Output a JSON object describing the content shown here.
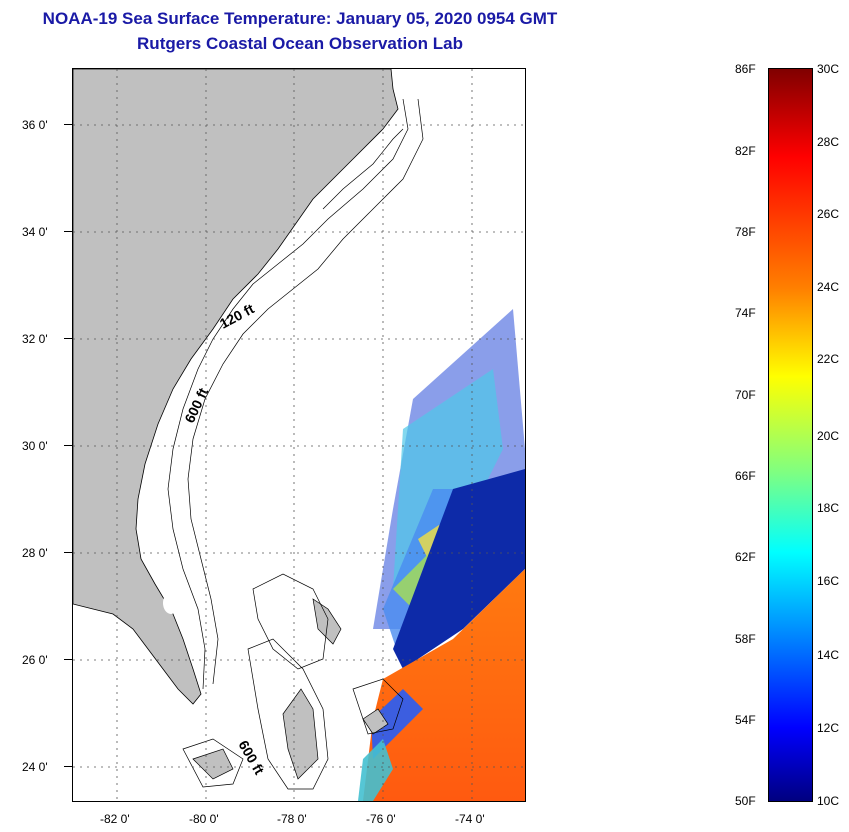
{
  "title": {
    "line1": "NOAA-19 Sea Surface Temperature:  January 05, 2020 0954 GMT",
    "line2": "Rutgers Coastal Ocean Observation Lab"
  },
  "map": {
    "lon_range": [
      -83.0,
      -72.8
    ],
    "lat_range": [
      23.0,
      37.2
    ],
    "lon_ticks": [
      "-82 0'",
      "-80 0'",
      "-78 0'",
      "-76 0'",
      "-74 0'"
    ],
    "lat_ticks": [
      "36 0'",
      "34 0'",
      "32 0'",
      "30 0'",
      "28 0'",
      "26 0'",
      "24 0'"
    ],
    "grid": "dotted",
    "land_color": "#c0c0c0",
    "contour_labels": [
      "120 ft",
      "600 ft",
      "600 ft"
    ]
  },
  "colorbar": {
    "f_labels": [
      "86F",
      "82F",
      "78F",
      "74F",
      "70F",
      "66F",
      "62F",
      "58F",
      "54F",
      "50F"
    ],
    "c_labels": [
      "30C",
      "28C",
      "26C",
      "24C",
      "22C",
      "20C",
      "18C",
      "16C",
      "14C",
      "12C",
      "10C"
    ],
    "range_c": [
      10,
      30
    ],
    "colormap": "jet"
  }
}
